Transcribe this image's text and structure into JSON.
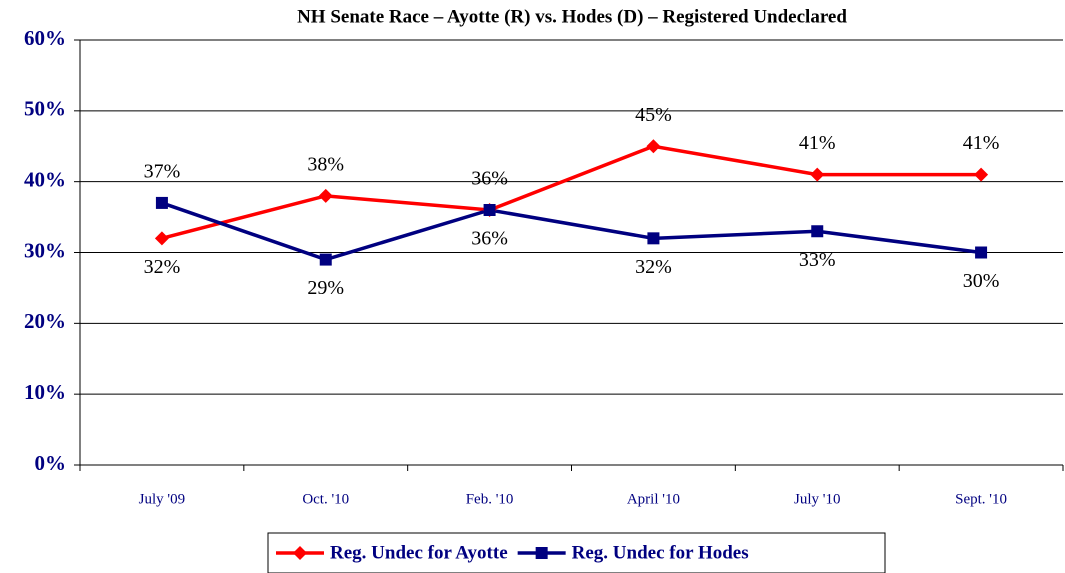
{
  "chart_data": {
    "type": "line",
    "title": "NH Senate Race – Ayotte (R) vs. Hodes (D) – Registered Undeclared",
    "categories": [
      "July '09",
      "Oct. '10",
      "Feb. '10",
      "April '10",
      "July '10",
      "Sept. '10"
    ],
    "series": [
      {
        "name": "Reg. Undec for Ayotte",
        "color": "#ff0000",
        "marker": "diamond",
        "values": [
          32,
          38,
          36,
          45,
          41,
          41
        ],
        "value_labels": [
          "32%",
          "38%",
          "36%",
          "45%",
          "41%",
          "41%"
        ]
      },
      {
        "name": "Reg. Undec for Hodes",
        "color": "#000080",
        "marker": "square",
        "values": [
          37,
          29,
          36,
          32,
          33,
          30
        ],
        "value_labels": [
          "37%",
          "29%",
          "36%",
          "32%",
          "33%",
          "30%"
        ]
      }
    ],
    "ylim": [
      0,
      60
    ],
    "yticks": [
      {
        "value": 0,
        "label": "0%"
      },
      {
        "value": 10,
        "label": "10%"
      },
      {
        "value": 20,
        "label": "20%"
      },
      {
        "value": 30,
        "label": "30%"
      },
      {
        "value": 40,
        "label": "40%"
      },
      {
        "value": 50,
        "label": "50%"
      },
      {
        "value": 60,
        "label": "60%"
      }
    ],
    "grid": true,
    "legend": "bottom"
  }
}
